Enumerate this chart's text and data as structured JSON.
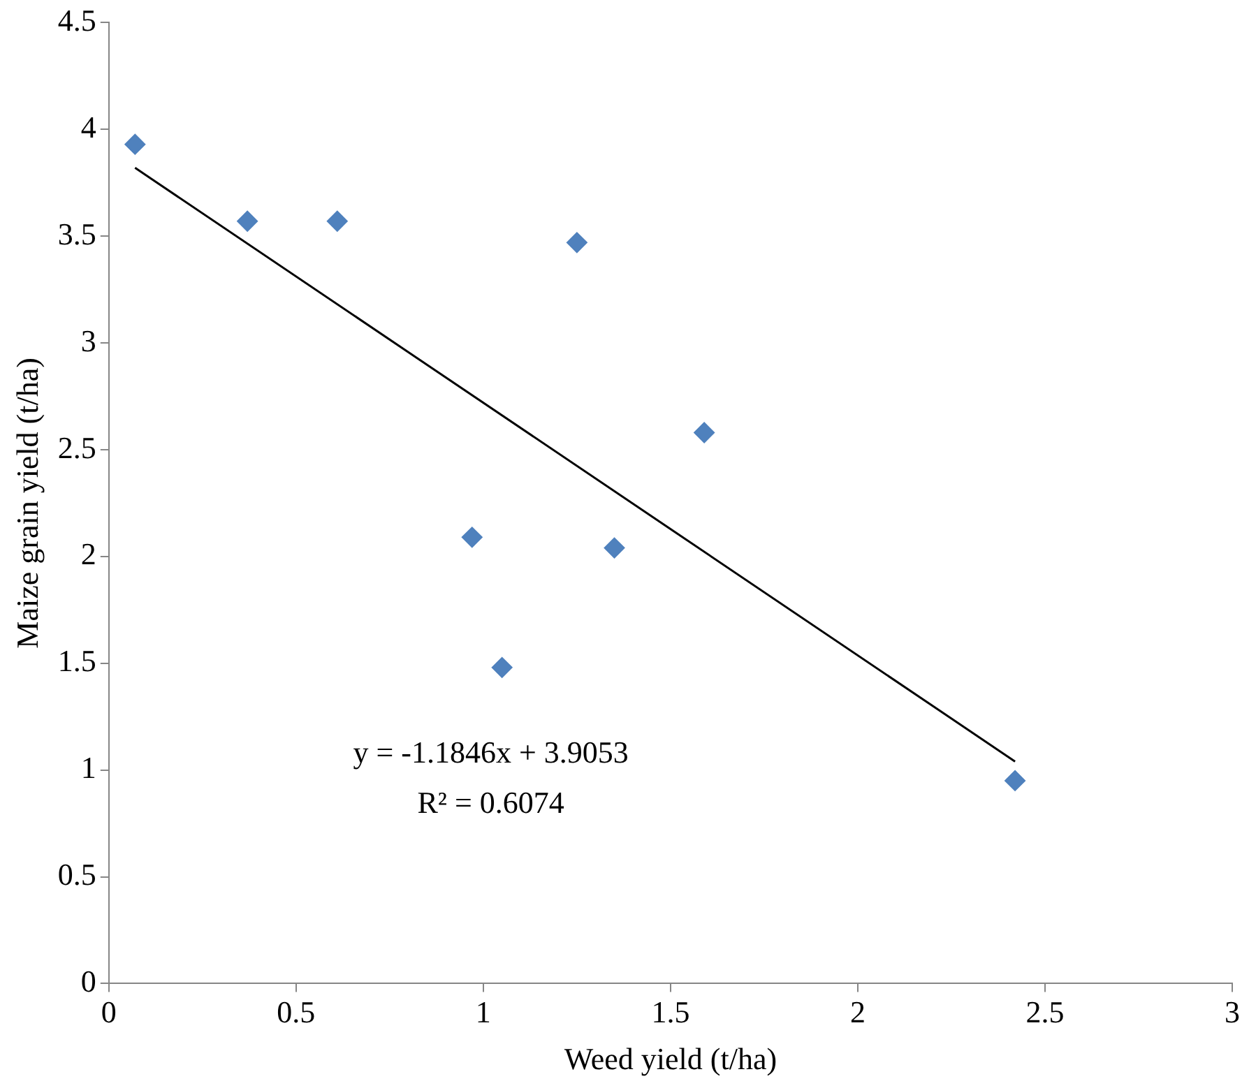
{
  "chart_data": {
    "type": "scatter",
    "xlabel": "Weed yield (t/ha)",
    "ylabel": "Maize grain yield (t/ha)",
    "xlim": [
      0,
      3
    ],
    "xticks": [
      0,
      0.5,
      1,
      1.5,
      2,
      2.5,
      3
    ],
    "ylim": [
      0,
      4.5
    ],
    "yticks": [
      0,
      0.5,
      1,
      1.5,
      2,
      2.5,
      3,
      3.5,
      4,
      4.5
    ],
    "grid": false,
    "legend": false,
    "marker": "diamond",
    "series": [
      {
        "type": "scatter",
        "color": "#4f81bd",
        "x": [
          0.07,
          0.37,
          0.61,
          1.25,
          1.59,
          0.97,
          1.35,
          1.05,
          2.42
        ],
        "values": [
          3.93,
          3.57,
          3.57,
          3.47,
          2.58,
          2.09,
          2.04,
          1.48,
          0.95
        ]
      },
      {
        "type": "line",
        "color": "#000000",
        "marker": "none",
        "x": [
          0.07,
          2.42
        ],
        "values": [
          3.82,
          1.04
        ]
      }
    ],
    "annotations": [
      "y = -1.1846x + 3.9053",
      "R² = 0.6074"
    ]
  }
}
